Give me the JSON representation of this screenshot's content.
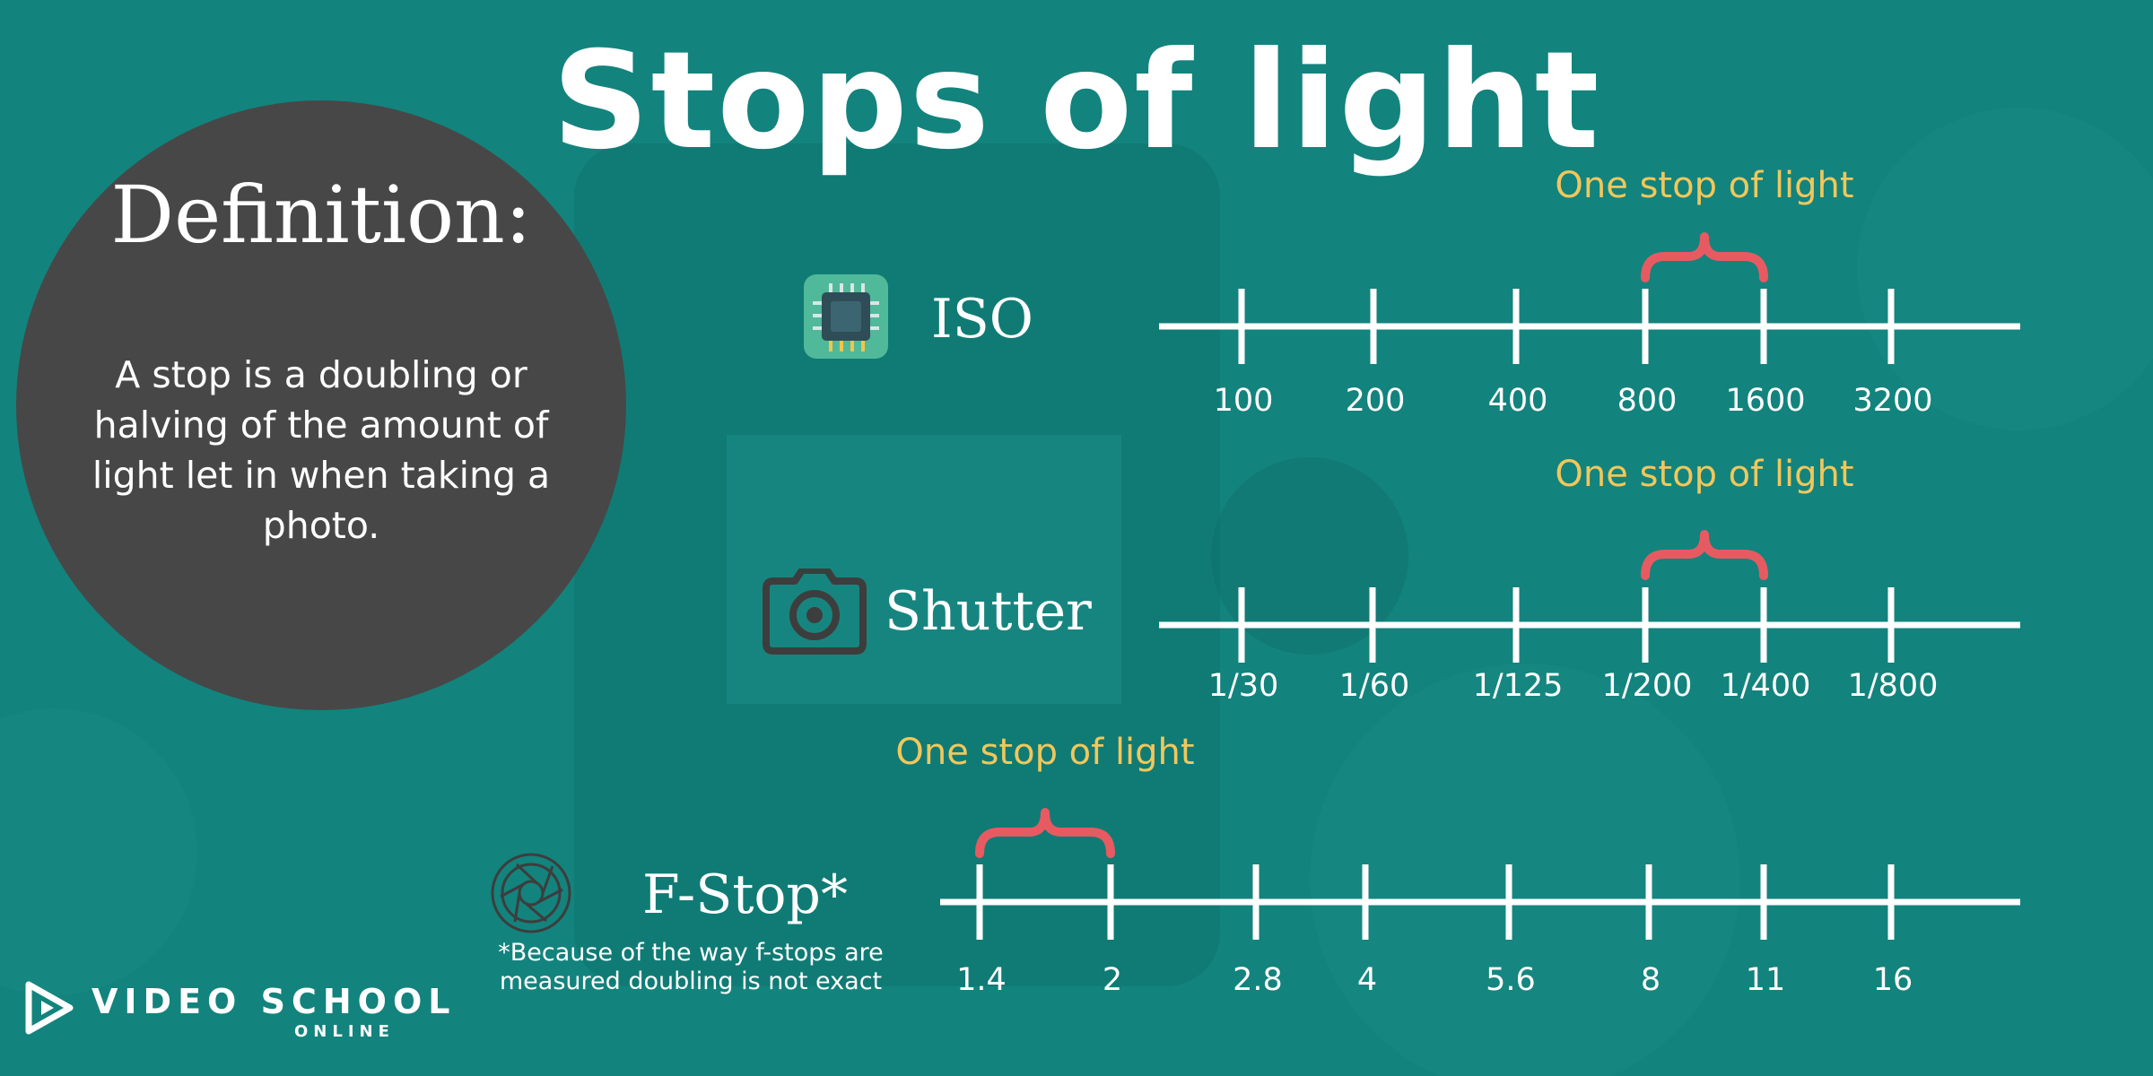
{
  "title": "Stops of light",
  "definition": {
    "heading": "Definition:",
    "body": "A stop is a doubling or halving of the amount of light let in when taking a photo."
  },
  "colors": {
    "background": "#13837d",
    "circle": "#474747",
    "annotation": "#f1c75b",
    "brace": "#e85a61",
    "line": "#ffffff"
  },
  "scales": [
    {
      "id": "iso",
      "label": "ISO",
      "icon": "chip-icon",
      "ticks": [
        "100",
        "200",
        "400",
        "800",
        "1600",
        "3200"
      ],
      "highlight": [
        3,
        4
      ],
      "annotation": "One stop of light"
    },
    {
      "id": "shutter",
      "label": "Shutter",
      "icon": "camera-icon",
      "ticks": [
        "1/30",
        "1/60",
        "1/125",
        "1/200",
        "1/400",
        "1/800"
      ],
      "highlight": [
        3,
        4
      ],
      "annotation": "One stop of light"
    },
    {
      "id": "fstop",
      "label": "F-Stop*",
      "icon": "aperture-icon",
      "ticks": [
        "1.4",
        "2",
        "2.8",
        "4",
        "5.6",
        "8",
        "11",
        "16"
      ],
      "highlight": [
        0,
        1
      ],
      "annotation": "One stop of light"
    }
  ],
  "footnote": "*Because of the way f-stops are measured doubling is not exact",
  "brand": {
    "name": "VIDEO SCHOOL",
    "sub": "ONLINE",
    "icon": "play-logo-icon"
  }
}
